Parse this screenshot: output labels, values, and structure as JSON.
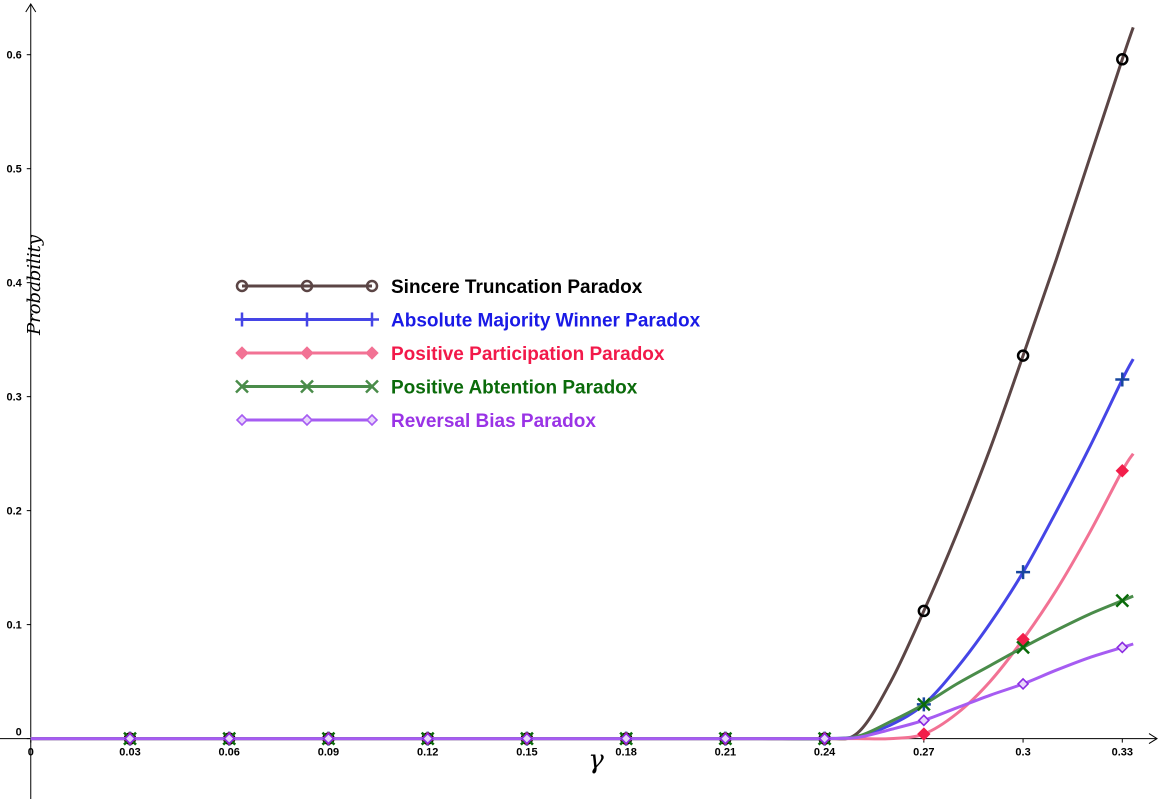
{
  "chart_data": {
    "type": "line",
    "xlabel": "γ",
    "ylabel": "Probability",
    "xlim": [
      -0.0093,
      0.3417
    ],
    "ylim": [
      -0.053,
      0.648
    ],
    "x_ticks": [
      {
        "v": 0,
        "label": "0"
      },
      {
        "v": 0.03,
        "label": "0.03"
      },
      {
        "v": 0.06,
        "label": "0.06"
      },
      {
        "v": 0.09,
        "label": "0.09"
      },
      {
        "v": 0.12,
        "label": "0.12"
      },
      {
        "v": 0.15,
        "label": "0.15"
      },
      {
        "v": 0.18,
        "label": "0.18"
      },
      {
        "v": 0.21,
        "label": "0.21"
      },
      {
        "v": 0.24,
        "label": "0.24"
      },
      {
        "v": 0.27,
        "label": "0.27"
      },
      {
        "v": 0.3,
        "label": "0.3"
      },
      {
        "v": 0.33,
        "label": "0.33"
      }
    ],
    "y_ticks": [
      {
        "v": 0,
        "label": "0"
      },
      {
        "v": 0.1,
        "label": "0.1"
      },
      {
        "v": 0.2,
        "label": "0.2"
      },
      {
        "v": 0.3,
        "label": "0.3"
      },
      {
        "v": 0.4,
        "label": "0.4"
      },
      {
        "v": 0.5,
        "label": "0.5"
      },
      {
        "v": 0.6,
        "label": "0.6"
      }
    ],
    "marker_x": [
      0.03,
      0.06,
      0.09,
      0.12,
      0.15,
      0.18,
      0.21,
      0.24,
      0.27,
      0.3,
      0.33
    ],
    "curve_x": [
      0,
      0.02,
      0.04,
      0.06,
      0.08,
      0.1,
      0.12,
      0.14,
      0.16,
      0.18,
      0.2,
      0.22,
      0.24,
      0.25,
      0.26,
      0.27,
      0.28,
      0.29,
      0.3,
      0.31,
      0.32,
      0.33,
      0.3333
    ],
    "series": [
      {
        "name": "Sincere Truncation Paradox",
        "line_color": "#5b4545",
        "marker_color": "#000000",
        "marker": "circle",
        "values": [
          0,
          0,
          0,
          0,
          0,
          0,
          0,
          0,
          0,
          0,
          0,
          0,
          0,
          0.005,
          0.05,
          0.112,
          0.18,
          0.254,
          0.336,
          0.42,
          0.508,
          0.596,
          0.624
        ],
        "marker_values": [
          0,
          0,
          0,
          0,
          0,
          0,
          0,
          0,
          0.112,
          0.336,
          0.596
        ]
      },
      {
        "name": "Absolute Majority Winner Paradox",
        "line_color": "#4545e6",
        "marker_color": "#17469e",
        "marker": "plus",
        "values": [
          0,
          0,
          0,
          0,
          0,
          0,
          0,
          0,
          0,
          0,
          0,
          0,
          0,
          0.002,
          0.012,
          0.03,
          0.062,
          0.101,
          0.146,
          0.199,
          0.255,
          0.315,
          0.333
        ],
        "marker_values": [
          0,
          0,
          0,
          0,
          0,
          0,
          0,
          0,
          0.03,
          0.146,
          0.315
        ]
      },
      {
        "name": "Positive Participation Paradox",
        "line_color": "#f27294",
        "marker_color": "#f21e4a",
        "marker": "diamond",
        "values": [
          0,
          0,
          0,
          0,
          0,
          0,
          0,
          0,
          0,
          0,
          0,
          0,
          0,
          0,
          0,
          0.004,
          0.022,
          0.05,
          0.087,
          0.13,
          0.18,
          0.235,
          0.25
        ],
        "marker_values": [
          0,
          0,
          0,
          0,
          0,
          0,
          0,
          0,
          0.004,
          0.087,
          0.235
        ]
      },
      {
        "name": "Positive Abtention Paradox",
        "line_color": "#4a8c4a",
        "marker_color": "#0a6b0a",
        "marker": "cross",
        "values": [
          0,
          0,
          0,
          0,
          0,
          0,
          0,
          0,
          0,
          0,
          0,
          0,
          0,
          0.002,
          0.015,
          0.03,
          0.048,
          0.064,
          0.08,
          0.095,
          0.109,
          0.121,
          0.125
        ],
        "marker_values": [
          0,
          0,
          0,
          0,
          0,
          0,
          0,
          0,
          0.03,
          0.08,
          0.121
        ]
      },
      {
        "name": "Reversal Bias Paradox",
        "line_color": "#a65cf2",
        "marker_color": "#8a2be2",
        "marker": "diamond-open",
        "values": [
          0,
          0,
          0,
          0,
          0,
          0,
          0,
          0,
          0,
          0,
          0,
          0,
          0,
          0.001,
          0.008,
          0.016,
          0.027,
          0.038,
          0.048,
          0.06,
          0.071,
          0.08,
          0.083
        ],
        "marker_values": [
          0,
          0,
          0,
          0,
          0,
          0,
          0,
          0,
          0.016,
          0.048,
          0.08
        ]
      }
    ],
    "legend": {
      "placement": "upper-left-center",
      "text_colors": [
        "#000000",
        "#1a1ae6",
        "#f2194a",
        "#0b6b0b",
        "#9a33e6"
      ]
    }
  }
}
